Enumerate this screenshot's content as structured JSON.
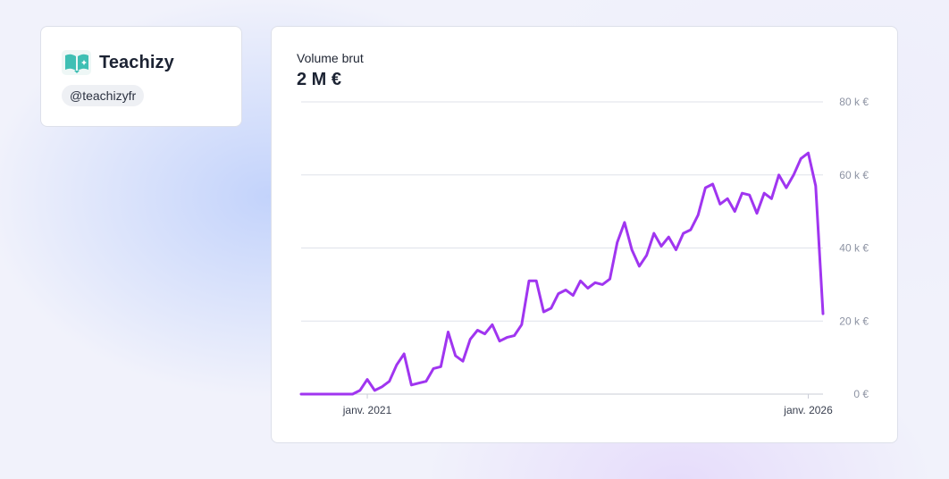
{
  "brand": {
    "name": "Teachizy",
    "handle": "@teachizyfr",
    "logo_icon": "open-book-sparkle-icon",
    "logo_color": "#3fbfb4"
  },
  "summary": {
    "title": "Volume brut",
    "total": "2 M €"
  },
  "chart_data": {
    "type": "line",
    "title": "Volume brut",
    "xlabel": "",
    "ylabel": "",
    "ylim": [
      0,
      80000
    ],
    "y_ticks": [
      {
        "value": 0,
        "label": "0 €"
      },
      {
        "value": 20000,
        "label": "20 k €"
      },
      {
        "value": 40000,
        "label": "40 k €"
      },
      {
        "value": 60000,
        "label": "60 k €"
      },
      {
        "value": 80000,
        "label": "80 k €"
      }
    ],
    "x_ticks": [
      {
        "index": 9,
        "label": "janv. 2021"
      },
      {
        "index": 69,
        "label": "janv. 2026"
      }
    ],
    "grid": true,
    "line_color": "#a035f0",
    "series": [
      {
        "name": "Volume brut",
        "values": [
          0,
          0,
          0,
          0,
          0,
          0,
          0,
          0,
          1000,
          4000,
          1000,
          2000,
          3500,
          8000,
          11000,
          2500,
          3000,
          3500,
          7000,
          7500,
          17000,
          10500,
          9000,
          15000,
          17500,
          16500,
          19000,
          14500,
          15500,
          16000,
          19000,
          31000,
          31000,
          22500,
          23500,
          27500,
          28500,
          27000,
          31000,
          29000,
          30500,
          30000,
          31500,
          41500,
          47000,
          39500,
          35000,
          38000,
          44000,
          40500,
          43000,
          39500,
          44000,
          45000,
          49000,
          56500,
          57500,
          52000,
          53500,
          50000,
          55000,
          54500,
          49500,
          55000,
          53500,
          60000,
          56500,
          60000,
          64500,
          66000,
          57000,
          22000
        ]
      }
    ]
  }
}
